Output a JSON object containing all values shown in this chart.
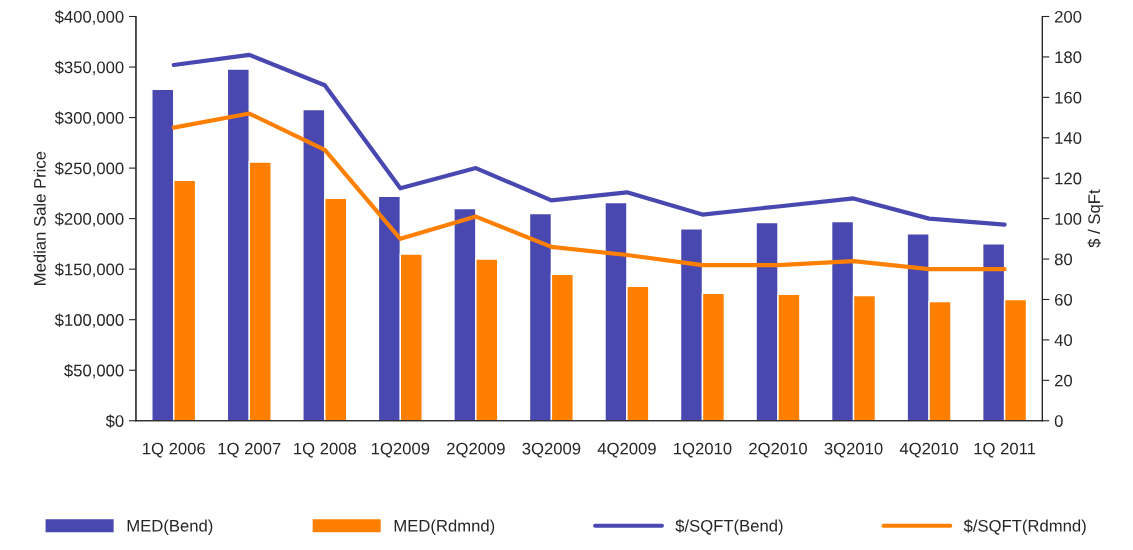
{
  "chart_data": {
    "type": "bar",
    "ylabel": "Median Sale Price",
    "y2label": "$ / SqFt",
    "categories": [
      "1Q 2006",
      "1Q 2007",
      "1Q 2008",
      "1Q2009",
      "2Q2009",
      "3Q2009",
      "4Q2009",
      "1Q2010",
      "2Q2010",
      "3Q2010",
      "4Q2010",
      "1Q 2011"
    ],
    "series": [
      {
        "name": "MED(Bend)",
        "color": "#4848b0",
        "values": [
          328000,
          348000,
          308000,
          222000,
          210000,
          205000,
          216000,
          190000,
          196000,
          197000,
          185000,
          175000
        ]
      },
      {
        "name": "MED(Rdmnd)",
        "color": "#ff8000",
        "values": [
          238000,
          256000,
          220000,
          165000,
          160000,
          145000,
          133000,
          126000,
          125000,
          124000,
          118000,
          120000
        ]
      },
      {
        "name": "$/SQFT(Bend)",
        "type": "line",
        "axis": "y2",
        "color": "#4848b0",
        "values": [
          176,
          181,
          166,
          115,
          125,
          109,
          113,
          102,
          106,
          110,
          100,
          97
        ]
      },
      {
        "name": "$/SQFT(Rdmnd)",
        "type": "line",
        "axis": "y2",
        "color": "#ff8000",
        "values": [
          145,
          152,
          134,
          90,
          101,
          86,
          82,
          77,
          77,
          79,
          75,
          75
        ]
      }
    ],
    "ylim": [
      0,
      400000
    ],
    "yticks": [
      {
        "value": 0,
        "label": "$0"
      },
      {
        "value": 50000,
        "label": "$50,000"
      },
      {
        "value": 100000,
        "label": "$100,000"
      },
      {
        "value": 150000,
        "label": "$150,000"
      },
      {
        "value": 200000,
        "label": "$200,000"
      },
      {
        "value": 250000,
        "label": "$250,000"
      },
      {
        "value": 300000,
        "label": "$300,000"
      },
      {
        "value": 350000,
        "label": "$350,000"
      },
      {
        "value": 400000,
        "label": "$400,000"
      }
    ],
    "y2lim": [
      0,
      200
    ],
    "y2ticks": [
      0,
      20,
      40,
      60,
      80,
      100,
      120,
      140,
      160,
      180,
      200
    ],
    "grid": false,
    "legend": "bottom"
  }
}
